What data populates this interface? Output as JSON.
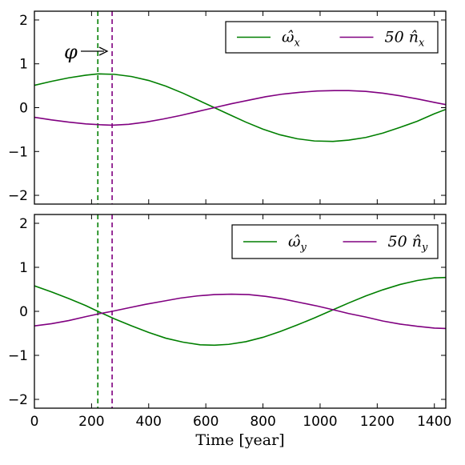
{
  "chart_data": [
    {
      "type": "line",
      "panel": "top",
      "xlim": [
        0,
        1440
      ],
      "ylim": [
        -2.2,
        2.2
      ],
      "yticks": [
        2,
        1,
        0,
        -1,
        -2
      ],
      "ytick_labels": [
        "2",
        "1",
        "0",
        "−1",
        "−2"
      ],
      "legend_placement": "top-right",
      "grid": false,
      "series": [
        {
          "name_main": "ω̂",
          "name_sub": "x",
          "color": "#007f00",
          "x": [
            0,
            60,
            120,
            180,
            223,
            280,
            340,
            400,
            460,
            520,
            580,
            630,
            680,
            740,
            800,
            860,
            920,
            980,
            1045,
            1100,
            1160,
            1220,
            1280,
            1340,
            1400,
            1440
          ],
          "y": [
            0.51,
            0.6,
            0.68,
            0.74,
            0.77,
            0.76,
            0.71,
            0.62,
            0.49,
            0.33,
            0.15,
            0.0,
            -0.15,
            -0.33,
            -0.49,
            -0.62,
            -0.71,
            -0.76,
            -0.77,
            -0.74,
            -0.68,
            -0.58,
            -0.45,
            -0.31,
            -0.14,
            -0.04
          ]
        },
        {
          "name_main": "50 n̂",
          "name_sub": "x",
          "color": "#800080",
          "x": [
            0,
            60,
            120,
            180,
            230,
            272,
            330,
            390,
            450,
            510,
            570,
            630,
            690,
            750,
            810,
            870,
            930,
            990,
            1050,
            1100,
            1160,
            1220,
            1280,
            1340,
            1400,
            1440
          ],
          "y": [
            -0.22,
            -0.28,
            -0.33,
            -0.37,
            -0.39,
            -0.4,
            -0.38,
            -0.33,
            -0.26,
            -0.18,
            -0.09,
            0.0,
            0.09,
            0.17,
            0.25,
            0.31,
            0.35,
            0.38,
            0.39,
            0.39,
            0.37,
            0.33,
            0.27,
            0.2,
            0.12,
            0.07
          ]
        }
      ],
      "vlines": [
        {
          "x": 222,
          "color": "#007f00",
          "style": "dashed"
        },
        {
          "x": 272,
          "color": "#800080",
          "style": "dashed"
        }
      ],
      "annotation": {
        "text": "φ",
        "arrow": true
      }
    },
    {
      "type": "line",
      "panel": "bottom",
      "xlim": [
        0,
        1440
      ],
      "ylim": [
        -2.2,
        2.2
      ],
      "yticks": [
        2,
        1,
        0,
        -1,
        -2
      ],
      "ytick_labels": [
        "2",
        "1",
        "0",
        "−1",
        "−2"
      ],
      "xticks": [
        0,
        200,
        400,
        600,
        800,
        1000,
        1200,
        1400
      ],
      "xtick_labels": [
        "0",
        "200",
        "400",
        "600",
        "800",
        "1000",
        "1200",
        "1400"
      ],
      "xlabel": "Time [year]",
      "legend_placement": "top-right",
      "grid": false,
      "series": [
        {
          "name_main": "ω̂",
          "name_sub": "y",
          "color": "#007f00",
          "x": [
            0,
            60,
            120,
            180,
            222,
            280,
            340,
            400,
            460,
            520,
            580,
            630,
            680,
            740,
            800,
            860,
            920,
            980,
            1040,
            1100,
            1160,
            1220,
            1280,
            1340,
            1400,
            1440
          ],
          "y": [
            0.58,
            0.44,
            0.29,
            0.13,
            0.0,
            -0.17,
            -0.33,
            -0.48,
            -0.61,
            -0.7,
            -0.76,
            -0.77,
            -0.75,
            -0.69,
            -0.59,
            -0.46,
            -0.31,
            -0.15,
            0.02,
            0.19,
            0.35,
            0.49,
            0.61,
            0.7,
            0.76,
            0.77
          ]
        },
        {
          "name_main": "50 n̂",
          "name_sub": "y",
          "color": "#800080",
          "x": [
            0,
            60,
            120,
            180,
            230,
            272,
            330,
            390,
            450,
            510,
            570,
            630,
            690,
            750,
            810,
            870,
            930,
            990,
            1050,
            1100,
            1160,
            1220,
            1280,
            1340,
            1400,
            1440
          ],
          "y": [
            -0.33,
            -0.28,
            -0.21,
            -0.12,
            -0.05,
            0.0,
            0.08,
            0.16,
            0.23,
            0.3,
            0.35,
            0.38,
            0.39,
            0.38,
            0.34,
            0.28,
            0.2,
            0.12,
            0.03,
            -0.05,
            -0.13,
            -0.22,
            -0.29,
            -0.34,
            -0.38,
            -0.39
          ]
        }
      ],
      "vlines": [
        {
          "x": 222,
          "color": "#007f00",
          "style": "dashed"
        },
        {
          "x": 272,
          "color": "#800080",
          "style": "dashed"
        }
      ]
    }
  ]
}
